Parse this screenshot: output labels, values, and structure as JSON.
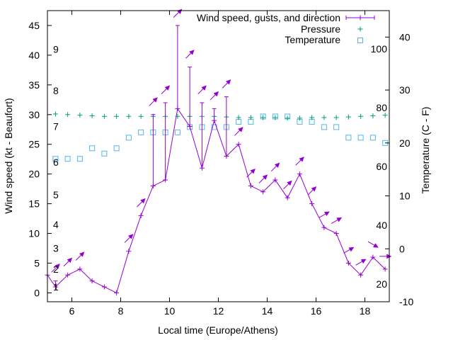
{
  "colors": {
    "wind": "#9400d3",
    "pressure": "#009e73",
    "temperature": "#56b4e9",
    "axis": "#000000"
  },
  "chart_data": {
    "type": "line",
    "title": "",
    "xlabel": "Local time (Europe/Athens)",
    "ylabel": "Wind speed (kt - Beaufort)",
    "y2label": "Temperature (C - F)",
    "xlim": [
      5,
      19
    ],
    "ylim": [
      -1.5,
      47.5
    ],
    "y2lim": [
      -10,
      45
    ],
    "x_ticks": [
      "6",
      "8",
      "10",
      "12",
      "14",
      "16",
      "18"
    ],
    "y_ticks": [
      "0",
      "5",
      "10",
      "15",
      "20",
      "25",
      "30",
      "35",
      "40",
      "45"
    ],
    "y2_ticks": [
      "-10",
      "0",
      "10",
      "20",
      "30",
      "40"
    ],
    "beaufort_labels": [
      "1",
      "2",
      "3",
      "4",
      "5",
      "6",
      "7",
      "8",
      "9"
    ],
    "fahrenheit_labels": [
      "20",
      "40",
      "60",
      "80",
      "100"
    ],
    "legend_position": "top-right",
    "series": [
      {
        "name": "Wind speed, gusts, and direction",
        "style": "linespoints-errorbars-arrows",
        "x": [
          5.0,
          5.33,
          5.83,
          6.33,
          6.83,
          7.33,
          7.83,
          8.33,
          8.83,
          9.33,
          9.83,
          10.33,
          10.83,
          11.33,
          11.83,
          12.33,
          12.83,
          13.33,
          13.83,
          14.33,
          14.83,
          15.33,
          15.83,
          16.33,
          16.83,
          17.33,
          17.83,
          18.33,
          18.83
        ],
        "values": [
          3,
          1,
          3,
          4,
          2,
          1,
          0,
          7,
          13,
          18,
          19,
          31,
          28,
          21,
          29,
          23,
          25,
          18,
          17,
          19,
          16,
          20,
          15,
          11,
          10,
          5,
          3,
          6,
          4
        ],
        "gusts": [
          null,
          2,
          null,
          null,
          null,
          null,
          null,
          null,
          null,
          30,
          32,
          45,
          38,
          32,
          31,
          33,
          null,
          null,
          null,
          null,
          null,
          null,
          null,
          null,
          null,
          null,
          null,
          null,
          null
        ],
        "direction_from_deg": [
          null,
          225,
          225,
          225,
          null,
          null,
          null,
          225,
          225,
          225,
          225,
          225,
          225,
          225,
          225,
          225,
          225,
          225,
          225,
          225,
          225,
          225,
          225,
          240,
          240,
          240,
          240,
          300,
          270
        ]
      },
      {
        "name": "Pressure",
        "style": "points-plus",
        "x": [
          5.33,
          5.83,
          6.33,
          6.83,
          7.33,
          7.83,
          8.33,
          8.83,
          9.33,
          9.83,
          10.33,
          10.83,
          11.33,
          11.83,
          12.33,
          12.83,
          13.33,
          13.83,
          14.33,
          14.83,
          15.33,
          15.83,
          16.33,
          16.83,
          17.33,
          17.83,
          18.33,
          18.83
        ],
        "values": [
          30.1,
          30.0,
          29.9,
          29.8,
          29.7,
          29.7,
          29.7,
          29.7,
          29.7,
          29.7,
          29.7,
          29.7,
          29.7,
          29.7,
          29.6,
          29.5,
          29.5,
          29.5,
          29.5,
          29.4,
          29.4,
          29.5,
          29.5,
          29.5,
          29.6,
          29.7,
          29.8,
          29.9
        ]
      },
      {
        "name": "Temperature",
        "style": "points-squares",
        "axis": "y2",
        "x": [
          5.33,
          5.83,
          6.33,
          6.83,
          7.33,
          7.83,
          8.33,
          8.83,
          9.33,
          9.83,
          10.33,
          10.83,
          11.33,
          11.83,
          12.33,
          12.83,
          13.33,
          13.83,
          14.33,
          14.83,
          15.33,
          15.83,
          16.33,
          16.83,
          17.33,
          17.83,
          18.33,
          18.83
        ],
        "values": [
          17,
          17,
          17,
          19,
          18,
          19,
          21,
          22,
          22,
          22,
          22,
          23,
          23,
          23,
          23,
          24,
          24,
          25,
          25,
          25,
          24,
          24,
          23,
          23,
          21,
          21,
          21,
          20
        ]
      }
    ]
  }
}
